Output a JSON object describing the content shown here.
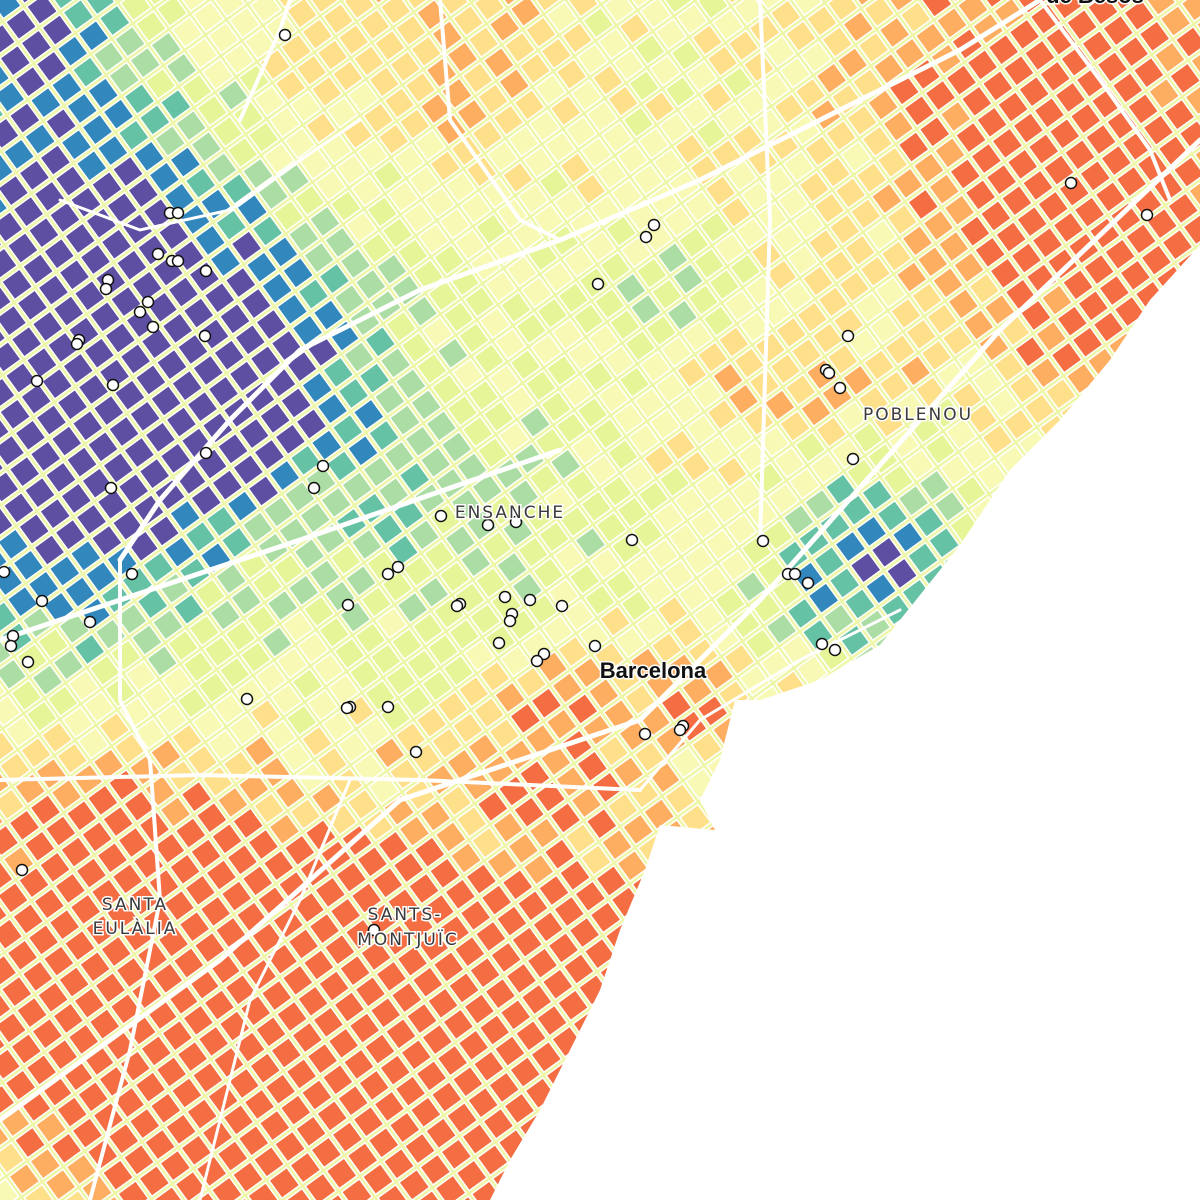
{
  "map": {
    "place_labels": [
      {
        "lines": [
          "de Besos"
        ]
      },
      {
        "lines": [
          "POBLENOU"
        ]
      },
      {
        "lines": [
          "ENSANCHE"
        ]
      },
      {
        "lines": [
          "Barcelona"
        ]
      },
      {
        "lines": [
          "SANTA",
          "EULÀLIA"
        ]
      },
      {
        "lines": [
          "SANTS-",
          "MONTJUÏC"
        ]
      }
    ]
  }
}
